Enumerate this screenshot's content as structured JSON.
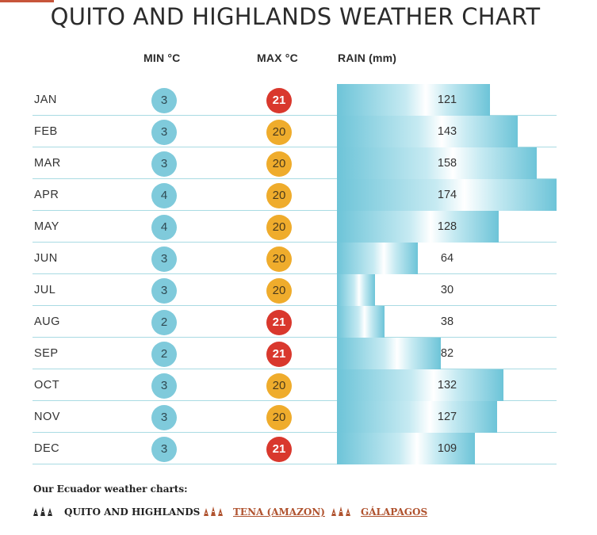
{
  "title": "QUITO AND HIGHLANDS WEATHER CHART",
  "colors": {
    "min_circle": "#7fcadb",
    "max_hot": "#d9382d",
    "max_warm": "#efac2c",
    "rain_bar": "#6dc4d8",
    "divider": "#a9dbe3",
    "link": "#b0532f"
  },
  "chart_data": {
    "type": "table",
    "columns": [
      "MIN °C",
      "MAX °C",
      "RAIN (mm)"
    ],
    "rows": [
      {
        "month": "JAN",
        "min": "3",
        "max": "21",
        "rain": "121"
      },
      {
        "month": "FEB",
        "min": "3",
        "max": "20",
        "rain": "143"
      },
      {
        "month": "MAR",
        "min": "3",
        "max": "20",
        "rain": "158"
      },
      {
        "month": "APR",
        "min": "4",
        "max": "20",
        "rain": "174"
      },
      {
        "month": "MAY",
        "min": "4",
        "max": "20",
        "rain": "128"
      },
      {
        "month": "JUN",
        "min": "3",
        "max": "20",
        "rain": "64"
      },
      {
        "month": "JUL",
        "min": "3",
        "max": "20",
        "rain": "30"
      },
      {
        "month": "AUG",
        "min": "2",
        "max": "21",
        "rain": "38"
      },
      {
        "month": "SEP",
        "min": "2",
        "max": "21",
        "rain": "82"
      },
      {
        "month": "OCT",
        "min": "3",
        "max": "20",
        "rain": "132"
      },
      {
        "month": "NOV",
        "min": "3",
        "max": "20",
        "rain": "127"
      },
      {
        "month": "DEC",
        "min": "3",
        "max": "21",
        "rain": "109"
      }
    ],
    "rain_max": 174
  },
  "footer": {
    "label": "Our Ecuador weather charts:",
    "links": [
      {
        "text": "QUITO AND HIGHLANDS",
        "current": true,
        "icon": "mountain-icon"
      },
      {
        "text": "TENA (AMAZON)",
        "current": false,
        "icon": "mountain-icon"
      },
      {
        "text": "GÁLAPAGOS",
        "current": false,
        "icon": "mountain-icon"
      }
    ]
  }
}
